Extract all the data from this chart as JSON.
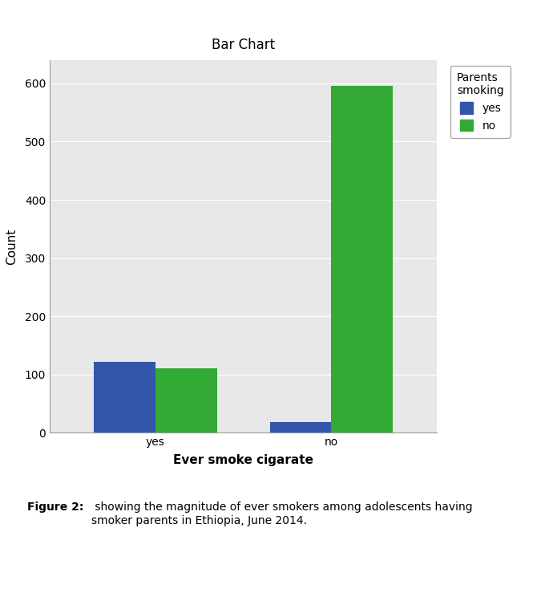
{
  "title": "Bar Chart",
  "xlabel": "Ever smoke cigarate",
  "ylabel": "Count",
  "categories": [
    "yes",
    "no"
  ],
  "series": [
    {
      "label": "yes",
      "color": "#3355aa",
      "values": [
        122,
        18
      ]
    },
    {
      "label": "no",
      "color": "#33aa33",
      "values": [
        110,
        596
      ]
    }
  ],
  "legend_title": "Parents\nsmoking",
  "ylim": [
    0,
    640
  ],
  "yticks": [
    0,
    100,
    200,
    300,
    400,
    500,
    600
  ],
  "bar_width": 0.35,
  "background_color": "#e8e8e8",
  "figure_background": "#ffffff",
  "caption_bold": "Figure 2:",
  "caption_normal": " showing the magnitude of ever smokers among adolescents having\nsmoker parents in Ethiopia, June 2014.",
  "title_fontsize": 12,
  "axis_label_fontsize": 11,
  "tick_fontsize": 10,
  "legend_fontsize": 10
}
